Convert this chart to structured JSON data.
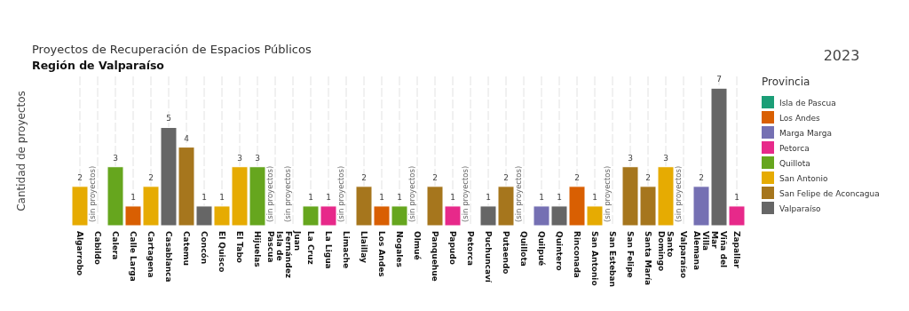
{
  "chart_data": {
    "type": "bar",
    "stacked": true,
    "title": "Proyectos de Recuperación de Espacios Públicos",
    "subtitle": "Región de Valparaíso",
    "ylabel": "Cantidad de proyectos",
    "legend_title": "Provincia",
    "legend": "right",
    "grid": "x",
    "tick_labels": "x",
    "data_labels": true,
    "annotations": [
      "2023",
      "(sin proyectos)",
      "(sin proyectos)",
      "(sin proyectos)",
      "(sin proyectos)",
      "(sin proyectos)",
      "(sin proyectos)",
      "(sin proyectos)",
      "(sin proyectos)",
      "(sin proyectos)"
    ],
    "categories": [
      "Algarrobo",
      "Cabildo",
      "Calera",
      "Calle Larga",
      "Cartagena",
      "Casablanca",
      "Catemu",
      "Concón",
      "El Quisco",
      "El Tabo",
      "Hijuelas",
      "Isla de Pascua",
      "Juan Fernández",
      "La Cruz",
      "La Ligua",
      "Limache",
      "Llaillay",
      "Los Andes",
      "Nogales",
      "Olmué",
      "Panquehue",
      "Papudo",
      "Petorca",
      "Puchuncaví",
      "Putaendo",
      "Quillota",
      "Quilpué",
      "Quintero",
      "Rinconada",
      "San Antonio",
      "San Esteban",
      "San Felipe",
      "Santa María",
      "Santo Domingo",
      "Valparaíso",
      "Villa Alemana",
      "Viña del Mar",
      "Zapallar"
    ],
    "series": [
      {
        "name": "Isla de Pascua",
        "color": "#1b9e77",
        "values": [
          null,
          null,
          null,
          null,
          null,
          null,
          null,
          null,
          null,
          null,
          null,
          null,
          null,
          null,
          null,
          null,
          null,
          null,
          null,
          null,
          null,
          null,
          null,
          null,
          null,
          null,
          null,
          null,
          null,
          null,
          null,
          null,
          null,
          null,
          null,
          null,
          null,
          null
        ]
      },
      {
        "name": "Los Andes",
        "color": "#d95f02",
        "values": [
          null,
          null,
          null,
          1,
          null,
          null,
          null,
          null,
          null,
          null,
          null,
          null,
          null,
          null,
          null,
          null,
          null,
          1,
          null,
          null,
          null,
          null,
          null,
          null,
          null,
          null,
          null,
          null,
          2,
          null,
          null,
          null,
          null,
          null,
          null,
          null,
          null,
          null
        ]
      },
      {
        "name": "Marga Marga",
        "color": "#7570b3",
        "values": [
          null,
          null,
          null,
          null,
          null,
          null,
          null,
          null,
          null,
          null,
          null,
          null,
          null,
          null,
          null,
          null,
          null,
          null,
          null,
          null,
          null,
          null,
          null,
          null,
          null,
          null,
          1,
          null,
          null,
          null,
          null,
          null,
          null,
          null,
          null,
          2,
          null,
          null
        ]
      },
      {
        "name": "Petorca",
        "color": "#e7298a",
        "values": [
          null,
          null,
          null,
          null,
          null,
          null,
          null,
          null,
          null,
          null,
          null,
          null,
          null,
          null,
          1,
          null,
          null,
          null,
          null,
          null,
          null,
          1,
          null,
          null,
          null,
          null,
          null,
          null,
          null,
          null,
          null,
          null,
          null,
          null,
          null,
          null,
          null,
          1
        ]
      },
      {
        "name": "Quillota",
        "color": "#66a61e",
        "values": [
          null,
          null,
          3,
          null,
          null,
          null,
          null,
          null,
          null,
          null,
          3,
          null,
          null,
          1,
          null,
          null,
          null,
          null,
          1,
          null,
          null,
          null,
          null,
          null,
          null,
          null,
          null,
          null,
          null,
          null,
          null,
          null,
          null,
          null,
          null,
          null,
          null,
          null
        ]
      },
      {
        "name": "San Antonio",
        "color": "#e6ab02",
        "values": [
          2,
          null,
          null,
          null,
          2,
          null,
          null,
          null,
          1,
          3,
          null,
          null,
          null,
          null,
          null,
          null,
          null,
          null,
          null,
          null,
          null,
          null,
          null,
          null,
          null,
          null,
          null,
          null,
          null,
          1,
          null,
          null,
          null,
          3,
          null,
          null,
          null,
          null
        ]
      },
      {
        "name": "San Felipe de Aconcagua",
        "color": "#a6761d",
        "values": [
          null,
          null,
          null,
          null,
          null,
          null,
          4,
          null,
          null,
          null,
          null,
          null,
          null,
          null,
          null,
          null,
          2,
          null,
          null,
          null,
          2,
          null,
          null,
          null,
          2,
          null,
          null,
          null,
          null,
          null,
          null,
          3,
          2,
          null,
          null,
          null,
          null,
          null
        ]
      },
      {
        "name": "Valparaíso",
        "color": "#666666",
        "values": [
          null,
          null,
          null,
          null,
          null,
          5,
          null,
          1,
          null,
          null,
          null,
          null,
          null,
          null,
          null,
          null,
          null,
          null,
          null,
          null,
          null,
          null,
          null,
          1,
          null,
          null,
          null,
          1,
          null,
          null,
          null,
          null,
          null,
          null,
          null,
          null,
          7,
          null
        ]
      }
    ]
  }
}
